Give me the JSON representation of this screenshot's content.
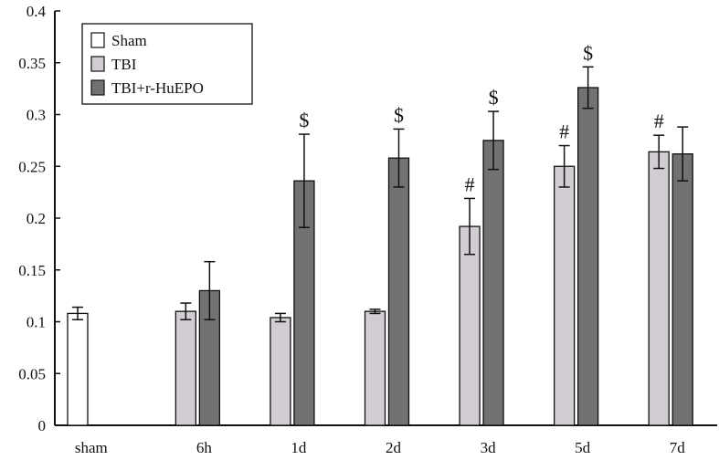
{
  "chart_data": {
    "type": "bar",
    "categories": [
      "sham",
      "6h",
      "1d",
      "2d",
      "3d",
      "5d",
      "7d"
    ],
    "ylim": [
      0,
      0.4
    ],
    "yticks": [
      0,
      0.05,
      0.1,
      0.15,
      0.2,
      0.25,
      0.3,
      0.35,
      0.4
    ],
    "ytick_labels": [
      "0",
      "0.05",
      "0.1",
      "0.15",
      "0.2",
      "0.25",
      "0.3",
      "0.35",
      "0.4"
    ],
    "grid": false,
    "legend_position": "top-left",
    "series": [
      {
        "name": "Sham",
        "color": "#ffffff",
        "values": [
          0.108,
          null,
          null,
          null,
          null,
          null,
          null
        ],
        "errors": [
          0.006,
          null,
          null,
          null,
          null,
          null,
          null
        ],
        "annotations": [
          null,
          null,
          null,
          null,
          null,
          null,
          null
        ]
      },
      {
        "name": "TBI",
        "color": "#d2cdd3",
        "values": [
          null,
          0.11,
          0.104,
          0.11,
          0.192,
          0.25,
          0.264
        ],
        "errors": [
          null,
          0.008,
          0.004,
          0.002,
          0.027,
          0.02,
          0.016
        ],
        "annotations": [
          null,
          null,
          null,
          null,
          "#",
          "#",
          "#"
        ]
      },
      {
        "name": "TBI+r-HuEPO",
        "color": "#737174",
        "values": [
          null,
          0.13,
          0.236,
          0.258,
          0.275,
          0.326,
          0.262
        ],
        "errors": [
          null,
          0.028,
          0.045,
          0.028,
          0.028,
          0.02,
          0.026
        ],
        "annotations": [
          null,
          null,
          "$",
          "$",
          "$",
          "$",
          null
        ]
      }
    ]
  }
}
